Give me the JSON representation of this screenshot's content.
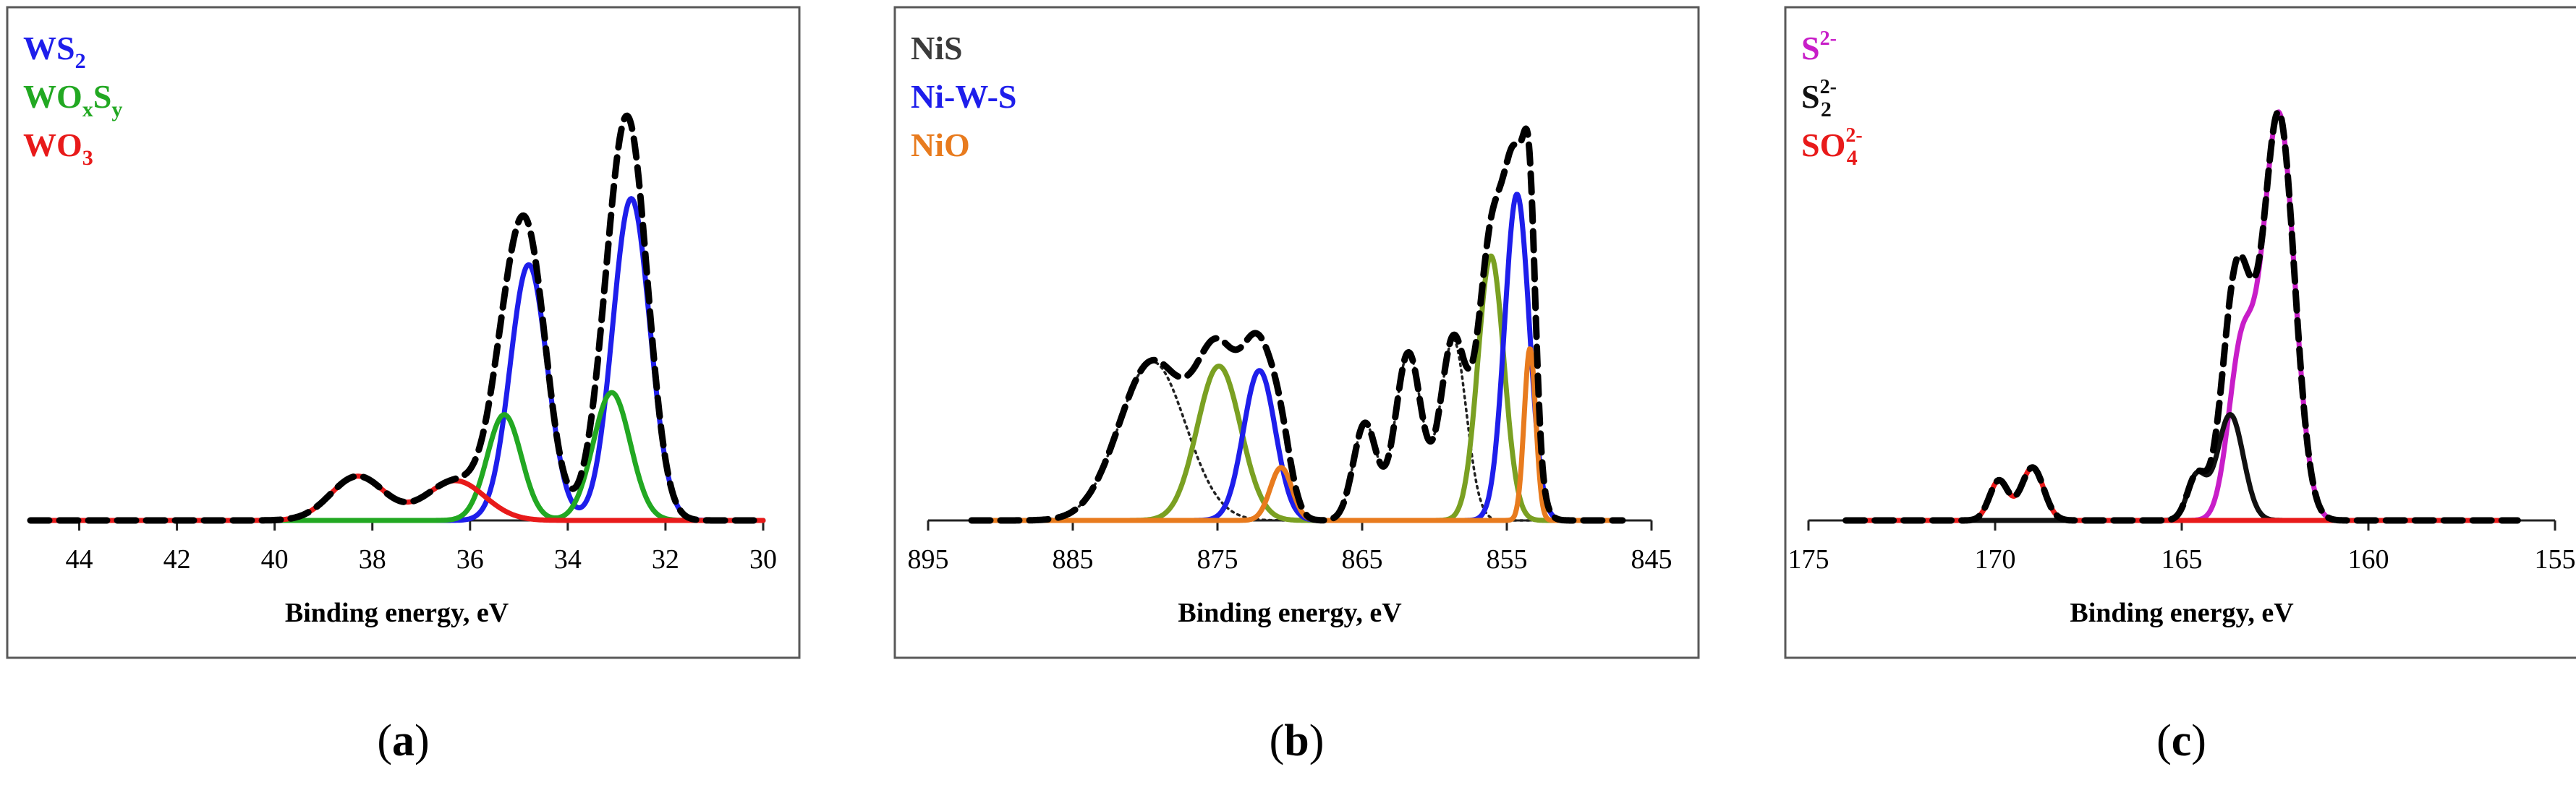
{
  "chart_data": [
    {
      "type": "line",
      "panel_label": "a",
      "xlabel": "Binding energy, eV",
      "xlim": [
        45,
        30
      ],
      "x_ticks": [
        44,
        42,
        40,
        38,
        36,
        34,
        32,
        30
      ],
      "x_range": [
        45,
        30
      ],
      "legend": [
        {
          "text": "WS",
          "sub": "2",
          "color": "#1e1eeb"
        },
        {
          "text": "WO",
          "sub": "x",
          "text2": "S",
          "sub2": "y",
          "color": "#22a822"
        },
        {
          "text": "WO",
          "sub": "3",
          "color": "#e81a1a"
        }
      ],
      "peak_max": 0.93,
      "series": [
        {
          "name": "WS2",
          "color": "#1e1eeb",
          "width": 7,
          "dash": "",
          "peaks": [
            {
              "c": 34.8,
              "h": 0.58,
              "w": 0.38
            },
            {
              "c": 32.7,
              "h": 0.73,
              "w": 0.38
            }
          ]
        },
        {
          "name": "WOxSy",
          "color": "#22a822",
          "width": 7,
          "dash": "",
          "peaks": [
            {
              "c": 35.3,
              "h": 0.24,
              "w": 0.35
            },
            {
              "c": 33.1,
              "h": 0.29,
              "w": 0.38
            }
          ]
        },
        {
          "name": "WO3",
          "color": "#e81a1a",
          "width": 7,
          "dash": "",
          "peaks": [
            {
              "c": 38.3,
              "h": 0.1,
              "w": 0.55
            },
            {
              "c": 36.3,
              "h": 0.09,
              "w": 0.6
            }
          ]
        },
        {
          "name": "Envelope",
          "color": "#000000",
          "width": 9,
          "dash": "26 14",
          "envelope": true
        }
      ]
    },
    {
      "type": "line",
      "panel_label": "b",
      "xlabel": "Binding energy, eV",
      "xlim": [
        895,
        845
      ],
      "x_ticks": [
        895,
        885,
        875,
        865,
        855,
        845
      ],
      "x_range": [
        892,
        847
      ],
      "legend": [
        {
          "text": "NiS",
          "color": "#3b3b3b"
        },
        {
          "text": "Ni-W-S",
          "color": "#1e1eeb"
        },
        {
          "text": "NiO",
          "color": "#e87b1e"
        }
      ],
      "peak_max": 0.93,
      "series": [
        {
          "name": "NiS satellites",
          "color": "#222222",
          "width": 3.5,
          "dash": "3 6",
          "peaks": [
            {
              "c": 879.5,
              "h": 0.36,
              "w": 2.3
            },
            {
              "c": 864.8,
              "h": 0.22,
              "w": 0.8
            },
            {
              "c": 861.8,
              "h": 0.38,
              "w": 0.9
            },
            {
              "c": 858.7,
              "h": 0.41,
              "w": 0.9
            }
          ]
        },
        {
          "name": "NiS",
          "color": "#7aa022",
          "width": 7,
          "dash": "",
          "peaks": [
            {
              "c": 874.9,
              "h": 0.35,
              "w": 1.5
            },
            {
              "c": 856.1,
              "h": 0.6,
              "w": 0.9
            }
          ]
        },
        {
          "name": "Ni-W-S",
          "color": "#1e1eeb",
          "width": 7,
          "dash": "",
          "peaks": [
            {
              "c": 872.1,
              "h": 0.34,
              "w": 1.1
            },
            {
              "c": 854.3,
              "h": 0.74,
              "w": 0.85
            }
          ]
        },
        {
          "name": "NiO",
          "color": "#e87b1e",
          "width": 7,
          "dash": "",
          "peaks": [
            {
              "c": 870.6,
              "h": 0.12,
              "w": 0.75
            },
            {
              "c": 853.4,
              "h": 0.39,
              "w": 0.4
            }
          ]
        },
        {
          "name": "Envelope",
          "color": "#000000",
          "width": 9,
          "dash": "26 14",
          "envelope": true,
          "dashdot_below": 877
        }
      ]
    },
    {
      "type": "line",
      "panel_label": "c",
      "xlabel": "Binding energy, eV",
      "xlim": [
        175,
        155
      ],
      "x_ticks": [
        175,
        170,
        165,
        160,
        155
      ],
      "x_range": [
        174,
        156
      ],
      "legend": [
        {
          "text": "S",
          "sup": "2-",
          "color": "#c81ec8"
        },
        {
          "text": "S",
          "sub": "2",
          "sup": "2-",
          "color": "#111111"
        },
        {
          "text": "SO",
          "sub": "4",
          "sup": "2-",
          "color": "#e81a1a"
        }
      ],
      "peak_max": 0.98,
      "series": [
        {
          "name": "S2-",
          "color": "#c81ec8",
          "width": 7,
          "dash": "",
          "peaks": [
            {
              "c": 162.4,
              "h": 0.92,
              "w": 0.42
            },
            {
              "c": 163.4,
              "h": 0.38,
              "w": 0.35
            }
          ]
        },
        {
          "name": "S22-",
          "color": "#111111",
          "width": 7,
          "dash": "",
          "peaks": [
            {
              "c": 163.7,
              "h": 0.24,
              "w": 0.35
            },
            {
              "c": 164.6,
              "h": 0.1,
              "w": 0.25
            }
          ]
        },
        {
          "name": "SO42-",
          "color": "#e81a1a",
          "width": 7,
          "dash": "",
          "peaks": [
            {
              "c": 169.0,
              "h": 0.12,
              "w": 0.3
            },
            {
              "c": 169.9,
              "h": 0.09,
              "w": 0.25
            }
          ]
        },
        {
          "name": "Envelope",
          "color": "#000000",
          "width": 9,
          "dash": "26 14",
          "envelope": true
        }
      ]
    }
  ]
}
